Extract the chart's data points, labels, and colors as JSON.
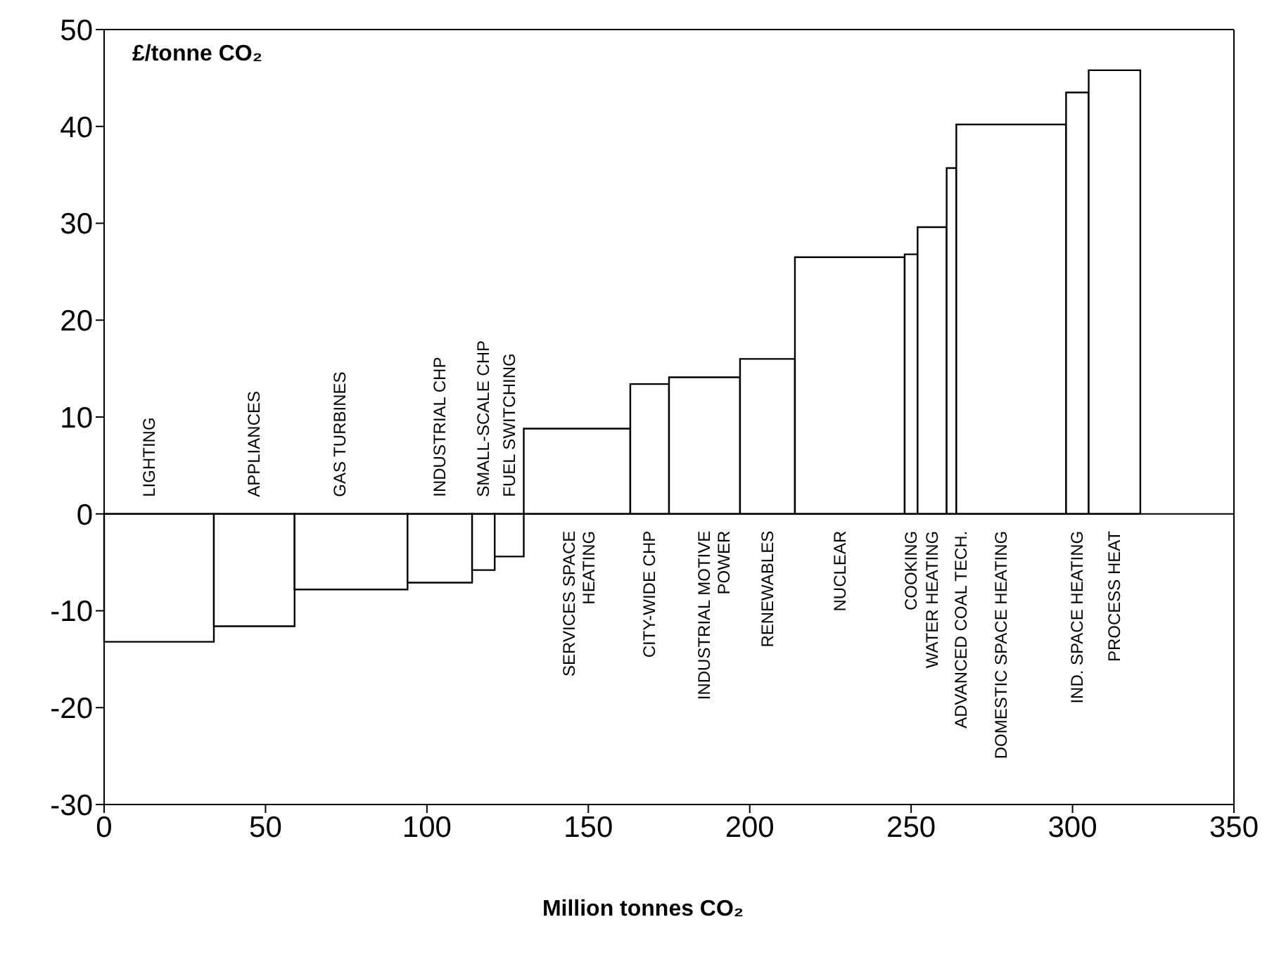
{
  "chart_data": {
    "type": "histogram",
    "xlabel": "Million tonnes CO₂",
    "ylabel": "£/tonne CO₂",
    "categories": [
      "LIGHTING",
      "APPLIANCES",
      "GAS TURBINES",
      "INDUSTRIAL CHP",
      "SMALL-SCALE CHP",
      "FUEL SWITCHING",
      "SERVICES SPACE\nHEATING",
      "CITY-WIDE CHP",
      "INDUSTRIAL MOTIVE\nPOWER",
      "RENEWABLES",
      "NUCLEAR",
      "COOKING",
      "WATER HEATING",
      "ADVANCED COAL TECH.",
      "DOMESTIC SPACE HEATING",
      "IND. SPACE HEATING",
      "PROCESS HEAT"
    ],
    "bins": [
      0,
      34,
      59,
      94,
      114,
      121,
      130,
      163,
      175,
      197,
      214,
      248,
      252,
      261,
      264,
      298,
      305,
      321
    ],
    "values": [
      -13.2,
      -11.6,
      -7.8,
      -7.1,
      -5.8,
      -4.4,
      8.8,
      13.4,
      14.1,
      16.0,
      26.5,
      26.8,
      29.6,
      35.7,
      40.2,
      43.5,
      45.8
    ],
    "color": "#ffffff",
    "xlim": [
      0,
      350
    ],
    "xticks": [
      0,
      50,
      100,
      150,
      200,
      250,
      300,
      350
    ],
    "ylim": [
      -30,
      50
    ],
    "yticks": [
      -30,
      -20,
      -10,
      0,
      10,
      20,
      30,
      40,
      50
    ]
  }
}
